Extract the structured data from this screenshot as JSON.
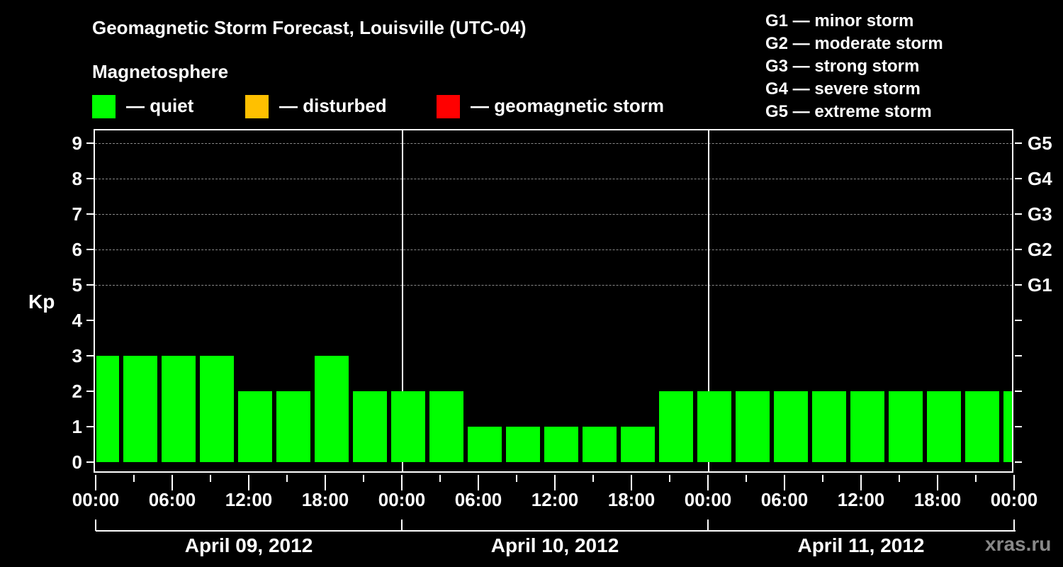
{
  "header": {
    "title": "Geomagnetic Storm Forecast, Louisville (UTC-04)",
    "subtitle": "Magnetosphere"
  },
  "legend": {
    "items": [
      {
        "label": "— quiet",
        "color": "#00ff00"
      },
      {
        "label": "— disturbed",
        "color": "#ffc000"
      },
      {
        "label": "— geomagnetic storm",
        "color": "#ff0000"
      }
    ]
  },
  "g_legend": [
    "G1 — minor storm",
    "G2 — moderate storm",
    "G3 — strong storm",
    "G4 — severe storm",
    "G5 — extreme storm"
  ],
  "axis": {
    "ylabel": "Kp",
    "yticks": [
      "0",
      "1",
      "2",
      "3",
      "4",
      "5",
      "6",
      "7",
      "8",
      "9"
    ],
    "gticks": [
      {
        "label": "G1",
        "kp": 5
      },
      {
        "label": "G2",
        "kp": 6
      },
      {
        "label": "G3",
        "kp": 7
      },
      {
        "label": "G4",
        "kp": 8
      },
      {
        "label": "G5",
        "kp": 9
      }
    ],
    "xticks": [
      "00:00",
      "06:00",
      "12:00",
      "18:00",
      "00:00",
      "06:00",
      "12:00",
      "18:00",
      "00:00",
      "06:00",
      "12:00",
      "18:00",
      "00:00"
    ],
    "dates": [
      "April 09, 2012",
      "April 10, 2012",
      "April 11, 2012"
    ]
  },
  "watermark": "xras.ru",
  "chart_data": {
    "type": "bar",
    "title": "Geomagnetic Storm Forecast, Louisville (UTC-04)",
    "subtitle": "Magnetosphere",
    "xlabel": "",
    "ylabel": "Kp",
    "ylim": [
      0,
      9
    ],
    "grid": "dashed horizontal at Kp 5-9",
    "legend": [
      "quiet",
      "disturbed",
      "geomagnetic storm"
    ],
    "secondary_y_labels": {
      "5": "G1",
      "6": "G2",
      "7": "G3",
      "8": "G4",
      "9": "G5"
    },
    "categories": [
      "Apr 09 00:00",
      "Apr 09 03:00",
      "Apr 09 06:00",
      "Apr 09 09:00",
      "Apr 09 12:00",
      "Apr 09 15:00",
      "Apr 09 18:00",
      "Apr 09 21:00",
      "Apr 10 00:00",
      "Apr 10 03:00",
      "Apr 10 06:00",
      "Apr 10 09:00",
      "Apr 10 12:00",
      "Apr 10 15:00",
      "Apr 10 18:00",
      "Apr 10 21:00",
      "Apr 11 00:00",
      "Apr 11 03:00",
      "Apr 11 06:00",
      "Apr 11 09:00",
      "Apr 11 12:00",
      "Apr 11 15:00",
      "Apr 11 18:00",
      "Apr 11 21:00",
      "Apr 12 00:00"
    ],
    "values": [
      3,
      3,
      3,
      3,
      2,
      2,
      3,
      2,
      2,
      2,
      1,
      1,
      1,
      1,
      1,
      2,
      2,
      2,
      2,
      2,
      2,
      2,
      2,
      2,
      2
    ],
    "status": "quiet"
  }
}
